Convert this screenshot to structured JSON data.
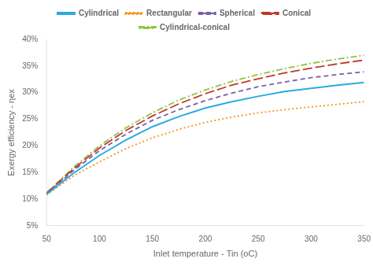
{
  "chart_data": {
    "type": "line",
    "x": [
      50,
      75,
      100,
      125,
      150,
      175,
      200,
      225,
      250,
      275,
      300,
      325,
      350
    ],
    "series": [
      {
        "name": "Cylindrical",
        "color": "#29abe2",
        "line_style": "solid",
        "values": [
          0.109,
          0.148,
          0.182,
          0.211,
          0.236,
          0.255,
          0.271,
          0.283,
          0.293,
          0.302,
          0.308,
          0.314,
          0.319
        ]
      },
      {
        "name": "Rectangular",
        "color": "#f7941d",
        "line_style": "dotted",
        "values": [
          0.108,
          0.143,
          0.17,
          0.195,
          0.215,
          0.231,
          0.244,
          0.254,
          0.262,
          0.268,
          0.273,
          0.278,
          0.283
        ]
      },
      {
        "name": "Spherical",
        "color": "#7b5ea7",
        "line_style": "dashed",
        "values": [
          0.11,
          0.153,
          0.191,
          0.222,
          0.248,
          0.268,
          0.285,
          0.299,
          0.311,
          0.32,
          0.328,
          0.334,
          0.339
        ]
      },
      {
        "name": "Conical",
        "color": "#c0392b",
        "line_style": "longdash",
        "values": [
          0.111,
          0.156,
          0.196,
          0.229,
          0.256,
          0.279,
          0.298,
          0.314,
          0.326,
          0.337,
          0.346,
          0.354,
          0.361
        ]
      },
      {
        "name": "Cylindrical-conical",
        "color": "#8dc63f",
        "line_style": "dashdot",
        "values": [
          0.112,
          0.159,
          0.2,
          0.234,
          0.262,
          0.286,
          0.305,
          0.321,
          0.334,
          0.345,
          0.355,
          0.363,
          0.37
        ]
      }
    ],
    "xlabel": "Inlet temperature - Tin (oC)",
    "ylabel": "Exergy efficiency - ηex",
    "xlim": [
      50,
      350
    ],
    "ylim": [
      0.05,
      0.4
    ],
    "xticks": [
      50,
      100,
      150,
      200,
      250,
      300,
      350
    ],
    "yticks": [
      {
        "value": 0.05,
        "label": "5%"
      },
      {
        "value": 0.1,
        "label": "10%"
      },
      {
        "value": 0.15,
        "label": "15%"
      },
      {
        "value": 0.2,
        "label": "20%"
      },
      {
        "value": 0.25,
        "label": "25%"
      },
      {
        "value": 0.3,
        "label": "30%"
      },
      {
        "value": 0.35,
        "label": "35%"
      },
      {
        "value": 0.4,
        "label": "40%"
      }
    ],
    "grid": false,
    "legend": "top"
  }
}
